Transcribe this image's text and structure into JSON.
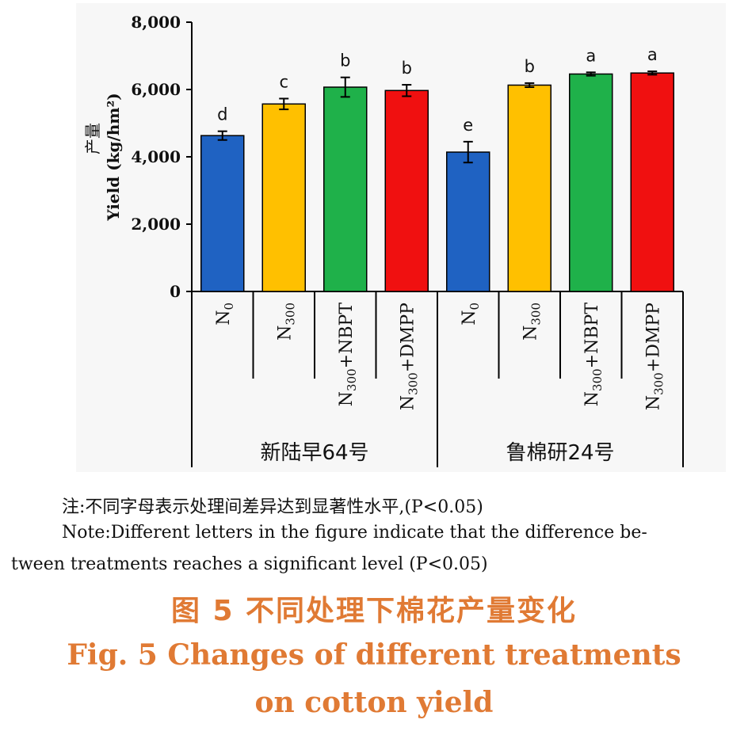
{
  "chart_data": {
    "type": "bar",
    "ylabel_cn": "产量",
    "ylabel": "Yield (kg/hm²)",
    "ylim": [
      0,
      8000
    ],
    "yticks": [
      "0",
      "2,000",
      "4,000",
      "6,000",
      "8,000"
    ],
    "ytick_values": [
      0,
      2000,
      4000,
      6000,
      8000
    ],
    "grid": false,
    "categories": [
      {
        "label": "N",
        "sub": "0",
        "suffix": ""
      },
      {
        "label": "N",
        "sub": "300",
        "suffix": ""
      },
      {
        "label": "N",
        "sub": "300",
        "suffix": "+NBPT"
      },
      {
        "label": "N",
        "sub": "300",
        "suffix": "+DMPP"
      },
      {
        "label": "N",
        "sub": "0",
        "suffix": ""
      },
      {
        "label": "N",
        "sub": "300",
        "suffix": ""
      },
      {
        "label": "N",
        "sub": "300",
        "suffix": "+NBPT"
      },
      {
        "label": "N",
        "sub": "300",
        "suffix": "+DMPP"
      }
    ],
    "groups": [
      {
        "name": "新陆早64号",
        "start": 0,
        "count": 4
      },
      {
        "name": "鲁棉研24号",
        "start": 4,
        "count": 4
      }
    ],
    "values": [
      4630,
      5570,
      6070,
      5970,
      4140,
      6130,
      6460,
      6490
    ],
    "errors": [
      130,
      160,
      290,
      170,
      310,
      60,
      50,
      50
    ],
    "significance": [
      "d",
      "c",
      "b",
      "b",
      "e",
      "b",
      "a",
      "a"
    ],
    "colors": [
      "#1f62c2",
      "#ffc000",
      "#1fb14a",
      "#f01010",
      "#1f62c2",
      "#ffc000",
      "#1fb14a",
      "#f01010"
    ]
  },
  "notes": {
    "cn": "注:不同字母表示处理间差异达到显著性水平,(P<0.05)",
    "en_line1": "Note:Different letters in the figure indicate that the difference be-",
    "en_line2": "tween treatments reaches a significant level (P<0.05)"
  },
  "caption": {
    "cn": "图 5    不同处理下棉花产量变化",
    "en_line1": "Fig. 5    Changes of different treatments",
    "en_line2": "on cotton yield"
  },
  "colors": {
    "caption": "#e07a34",
    "panel_bg": "#f7f7f7"
  }
}
